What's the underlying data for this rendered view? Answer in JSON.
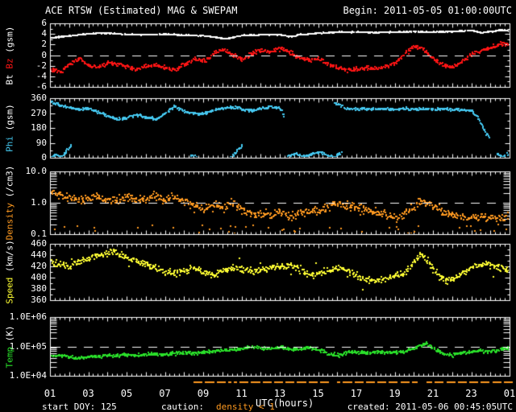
{
  "header": {
    "title": "ACE RTSW (Estimated) MAG & SWEPAM",
    "begin": "Begin: 2011-05-05 01:00:00UTC"
  },
  "footer": {
    "start_doy": "start DOY: 125",
    "caution_label": "caution:",
    "caution_value": "density < 1",
    "created": "created: 2011-05-06 00:45:05UTC"
  },
  "x_axis": {
    "label": "UTC(hours)",
    "tick_labels": [
      "01",
      "03",
      "05",
      "07",
      "09",
      "11",
      "13",
      "15",
      "17",
      "19",
      "21",
      "23",
      "01"
    ],
    "tick_hours": [
      1,
      3,
      5,
      7,
      9,
      11,
      13,
      15,
      17,
      19,
      21,
      23,
      25
    ],
    "range_hours": [
      1,
      25
    ]
  },
  "colors": {
    "background": "#000000",
    "frame": "#ffffff",
    "text": "#ffffff",
    "bt": "#ffffff",
    "bz": "#ff1515",
    "phi": "#45c8f0",
    "density": "#ff9a20",
    "speed": "#ffff33",
    "temp": "#2ae02a",
    "caution": "#ff9a20",
    "dashed_line": "#ffffff"
  },
  "chart_data": [
    {
      "type": "scatter",
      "name": "magnetic-field",
      "scale": "linear",
      "ylim": [
        -6,
        6
      ],
      "dashed_line": 0,
      "yticks": [
        {
          "v": 6,
          "label": "6"
        },
        {
          "v": 4,
          "label": "4"
        },
        {
          "v": 2,
          "label": "2"
        },
        {
          "v": 0,
          "label": "0"
        },
        {
          "v": -2,
          "label": "-2"
        },
        {
          "v": -4,
          "label": "-4"
        },
        {
          "v": -6,
          "label": "-6"
        }
      ],
      "ylabel_parts": [
        {
          "text": "Bt ",
          "color": "#ffffff"
        },
        {
          "text": "Bz",
          "color": "#ff1515"
        },
        {
          "text": " (gsm)",
          "color": "#ffffff"
        }
      ],
      "series": [
        {
          "name": "Bt",
          "color": "#ffffff",
          "x": [
            1,
            2,
            3,
            4,
            5,
            6,
            7,
            8,
            9,
            9.8,
            10.2,
            10.6,
            11,
            12,
            13,
            13.5,
            14,
            15,
            16,
            17,
            18,
            19,
            20,
            21,
            22,
            23,
            23.5,
            24,
            24.5,
            25
          ],
          "y": [
            3.4,
            3.8,
            4.2,
            4.3,
            4.0,
            4.0,
            4.1,
            3.9,
            3.8,
            3.4,
            3.2,
            3.6,
            3.9,
            4.0,
            4.0,
            3.6,
            4.0,
            4.3,
            4.5,
            4.5,
            4.4,
            4.5,
            4.6,
            4.5,
            4.6,
            4.8,
            4.4,
            4.6,
            4.9,
            4.7
          ]
        },
        {
          "name": "Bz",
          "color": "#ff1515",
          "x": [
            1,
            1.5,
            2,
            2.5,
            3,
            3.5,
            4,
            4.5,
            5,
            5.5,
            6,
            6.5,
            7,
            7.5,
            8,
            8.5,
            9,
            9.5,
            10,
            10.5,
            11,
            11.5,
            12,
            12.5,
            13,
            13.5,
            14,
            14.5,
            15,
            15.5,
            16,
            16.5,
            17,
            17.5,
            18,
            18.5,
            19,
            19.5,
            20,
            20.5,
            21,
            21.5,
            22,
            22.5,
            23,
            23.5,
            24,
            24.5,
            25
          ],
          "y": [
            -2.5,
            -3,
            -1.5,
            -0.6,
            -1.8,
            -2.2,
            -1.2,
            -1.6,
            -2,
            -2.5,
            -2,
            -1.8,
            -2.2,
            -2.8,
            -1.5,
            -0.5,
            -1,
            0.3,
            1.2,
            0.2,
            -0.8,
            0.5,
            1,
            0.8,
            1.5,
            0.5,
            -0.3,
            -0.8,
            -0.5,
            -1.5,
            -2.3,
            -2.8,
            -2.5,
            -2.2,
            -2.5,
            -2,
            -1.5,
            0.5,
            1.8,
            1.2,
            -0.5,
            -1.8,
            -2.2,
            -1,
            0.5,
            1,
            1.5,
            2.2,
            2.5
          ]
        }
      ]
    },
    {
      "type": "scatter",
      "name": "phi-angle",
      "scale": "linear",
      "ylim": [
        0,
        360
      ],
      "dashed_line": null,
      "yticks": [
        {
          "v": 360,
          "label": "360"
        },
        {
          "v": 270,
          "label": "270"
        },
        {
          "v": 180,
          "label": "180"
        },
        {
          "v": 90,
          "label": "90"
        },
        {
          "v": 0,
          "label": "0"
        }
      ],
      "ylabel_parts": [
        {
          "text": "Phi",
          "color": "#45c8f0"
        },
        {
          "text": " (gsm)",
          "color": "#ffffff"
        }
      ],
      "series": [
        {
          "name": "Phi",
          "color": "#45c8f0",
          "x": [
            1,
            1.5,
            2,
            2.5,
            3,
            3.5,
            4,
            4.5,
            5,
            5.5,
            6,
            6.5,
            7,
            7.5,
            8,
            8.5,
            9,
            9.5,
            10,
            10.5,
            11,
            11.5,
            12,
            12.5,
            13,
            13.2,
            15.8,
            16.5,
            17,
            17.5,
            18,
            18.5,
            19,
            19.5,
            20,
            20.5,
            21,
            21.5,
            22,
            22.5,
            23,
            23.3,
            23.6,
            23.9
          ],
          "y": [
            345,
            320,
            308,
            296,
            300,
            282,
            256,
            238,
            246,
            262,
            250,
            236,
            276,
            316,
            286,
            272,
            270,
            292,
            302,
            312,
            296,
            290,
            302,
            312,
            302,
            250,
            340,
            300,
            298,
            300,
            302,
            299,
            296,
            303,
            298,
            300,
            296,
            299,
            294,
            298,
            288,
            250,
            180,
            120
          ]
        },
        {
          "name": "Phi-wrap",
          "color": "#45c8f0",
          "x": [
            1,
            1.3,
            1.6,
            1.9,
            2.1,
            8.3,
            8.6,
            10.4,
            10.7,
            11,
            13.4,
            13.8,
            14.2,
            14.6,
            15,
            15.4,
            15.8,
            16.2,
            24.3,
            24.6,
            24.8,
            25
          ],
          "y": [
            10,
            25,
            5,
            60,
            80,
            15,
            8,
            5,
            40,
            80,
            15,
            30,
            10,
            25,
            40,
            20,
            10,
            35,
            30,
            10,
            25,
            15
          ]
        }
      ]
    },
    {
      "type": "scatter",
      "name": "density",
      "scale": "log",
      "ylim": [
        0.1,
        10
      ],
      "dashed_line": 1,
      "yticks": [
        {
          "v": 10,
          "label": "10.0"
        },
        {
          "v": 1,
          "label": "1.0"
        },
        {
          "v": 0.1,
          "label": "0.1"
        }
      ],
      "ylabel_parts": [
        {
          "text": "Density",
          "color": "#ff9a20"
        },
        {
          "text": " (/cm3)",
          "color": "#ffffff"
        }
      ],
      "series": [
        {
          "name": "Density",
          "color": "#ff9a20",
          "x": [
            1,
            1.3,
            1.6,
            2,
            2.5,
            3,
            3.5,
            4,
            4.5,
            5,
            5.5,
            6,
            6.5,
            7,
            7.5,
            8,
            8.5,
            9,
            9.5,
            10,
            10.5,
            11,
            11.5,
            12,
            12.5,
            13,
            13.5,
            14,
            14.5,
            15,
            15.5,
            15.8,
            16.1,
            16.5,
            17,
            17.5,
            18,
            18.5,
            19,
            19.5,
            20,
            20.3,
            20.6,
            21,
            21.5,
            22,
            22.5,
            23,
            23.5,
            24,
            24.5,
            25
          ],
          "y": [
            1.9,
            2.1,
            1.7,
            1.5,
            1.2,
            1.5,
            1.6,
            1.2,
            1.4,
            1.6,
            1.3,
            1.5,
            1.8,
            1.4,
            1.5,
            1.2,
            0.8,
            0.65,
            0.9,
            0.7,
            1.1,
            0.6,
            0.5,
            0.45,
            0.4,
            0.55,
            0.35,
            0.45,
            0.55,
            0.6,
            0.8,
            1.2,
            0.9,
            0.8,
            0.75,
            0.6,
            0.5,
            0.45,
            0.35,
            0.5,
            0.8,
            1.3,
            1.0,
            0.85,
            0.5,
            0.4,
            0.35,
            0.38,
            0.42,
            0.36,
            0.32,
            0.4
          ]
        }
      ]
    },
    {
      "type": "scatter",
      "name": "speed",
      "scale": "linear",
      "ylim": [
        360,
        460
      ],
      "dashed_line": null,
      "yticks": [
        {
          "v": 460,
          "label": "460"
        },
        {
          "v": 440,
          "label": "440"
        },
        {
          "v": 420,
          "label": "420"
        },
        {
          "v": 400,
          "label": "400"
        },
        {
          "v": 380,
          "label": "380"
        },
        {
          "v": 360,
          "label": "360"
        }
      ],
      "ylabel_parts": [
        {
          "text": "Speed",
          "color": "#ffff33"
        },
        {
          "text": " (km/s)",
          "color": "#ffffff"
        }
      ],
      "series": [
        {
          "name": "Speed",
          "color": "#ffff33",
          "x": [
            1,
            1.5,
            2,
            2.5,
            3,
            3.5,
            4,
            4.3,
            4.6,
            5,
            5.5,
            6,
            6.5,
            7,
            7.5,
            8,
            8.5,
            9,
            9.5,
            10,
            10.5,
            11,
            11.5,
            12,
            12.5,
            13,
            13.5,
            14,
            14.5,
            15,
            15.5,
            16,
            16.5,
            17,
            17.5,
            18,
            18.5,
            19,
            19.5,
            20,
            20.3,
            20.6,
            21,
            21.4,
            21.8,
            22.2,
            22.6,
            23,
            23.5,
            24,
            24.5,
            25
          ],
          "y": [
            428,
            424,
            420,
            428,
            436,
            441,
            446,
            448,
            442,
            437,
            430,
            424,
            419,
            412,
            408,
            414,
            418,
            410,
            405,
            412,
            419,
            417,
            412,
            415,
            418,
            420,
            424,
            414,
            406,
            410,
            415,
            419,
            414,
            405,
            398,
            395,
            400,
            406,
            410,
            426,
            444,
            434,
            415,
            400,
            395,
            404,
            412,
            420,
            426,
            424,
            419,
            413
          ]
        }
      ]
    },
    {
      "type": "scatter",
      "name": "temperature",
      "scale": "log",
      "ylim": [
        10000,
        1000000
      ],
      "dashed_line": 100000,
      "yticks": [
        {
          "v": 1000000,
          "label": "1.0E+06"
        },
        {
          "v": 100000,
          "label": "1.0E+05"
        },
        {
          "v": 10000,
          "label": "1.0E+04"
        }
      ],
      "ylabel_parts": [
        {
          "text": "Temp",
          "color": "#2ae02a"
        },
        {
          "text": " (K)",
          "color": "#ffffff"
        }
      ],
      "series": [
        {
          "name": "Temp",
          "color": "#2ae02a",
          "x": [
            1,
            1.5,
            2,
            2.5,
            3,
            3.5,
            4,
            4.5,
            5,
            5.5,
            6,
            6.5,
            7,
            7.5,
            8,
            8.5,
            9,
            9.5,
            10,
            10.5,
            11,
            11.5,
            12,
            12.5,
            13,
            13.5,
            14,
            14.5,
            15,
            15.5,
            16,
            16.5,
            17,
            17.5,
            18,
            18.5,
            19,
            19.5,
            20,
            20.3,
            20.6,
            21,
            21.5,
            22,
            22.5,
            23,
            23.5,
            24,
            24.5,
            25
          ],
          "y": [
            50000,
            52000,
            46000,
            42000,
            48000,
            50000,
            54000,
            52000,
            55000,
            53000,
            56000,
            60000,
            56000,
            62000,
            66000,
            62000,
            68000,
            72000,
            76000,
            82000,
            90000,
            98000,
            86000,
            90000,
            102000,
            80000,
            86000,
            94000,
            80000,
            60000,
            52000,
            66000,
            68000,
            64000,
            68000,
            66000,
            66000,
            70000,
            90000,
            120000,
            130000,
            90000,
            60000,
            54000,
            64000,
            68000,
            74000,
            70000,
            80000,
            95000
          ]
        }
      ]
    }
  ]
}
